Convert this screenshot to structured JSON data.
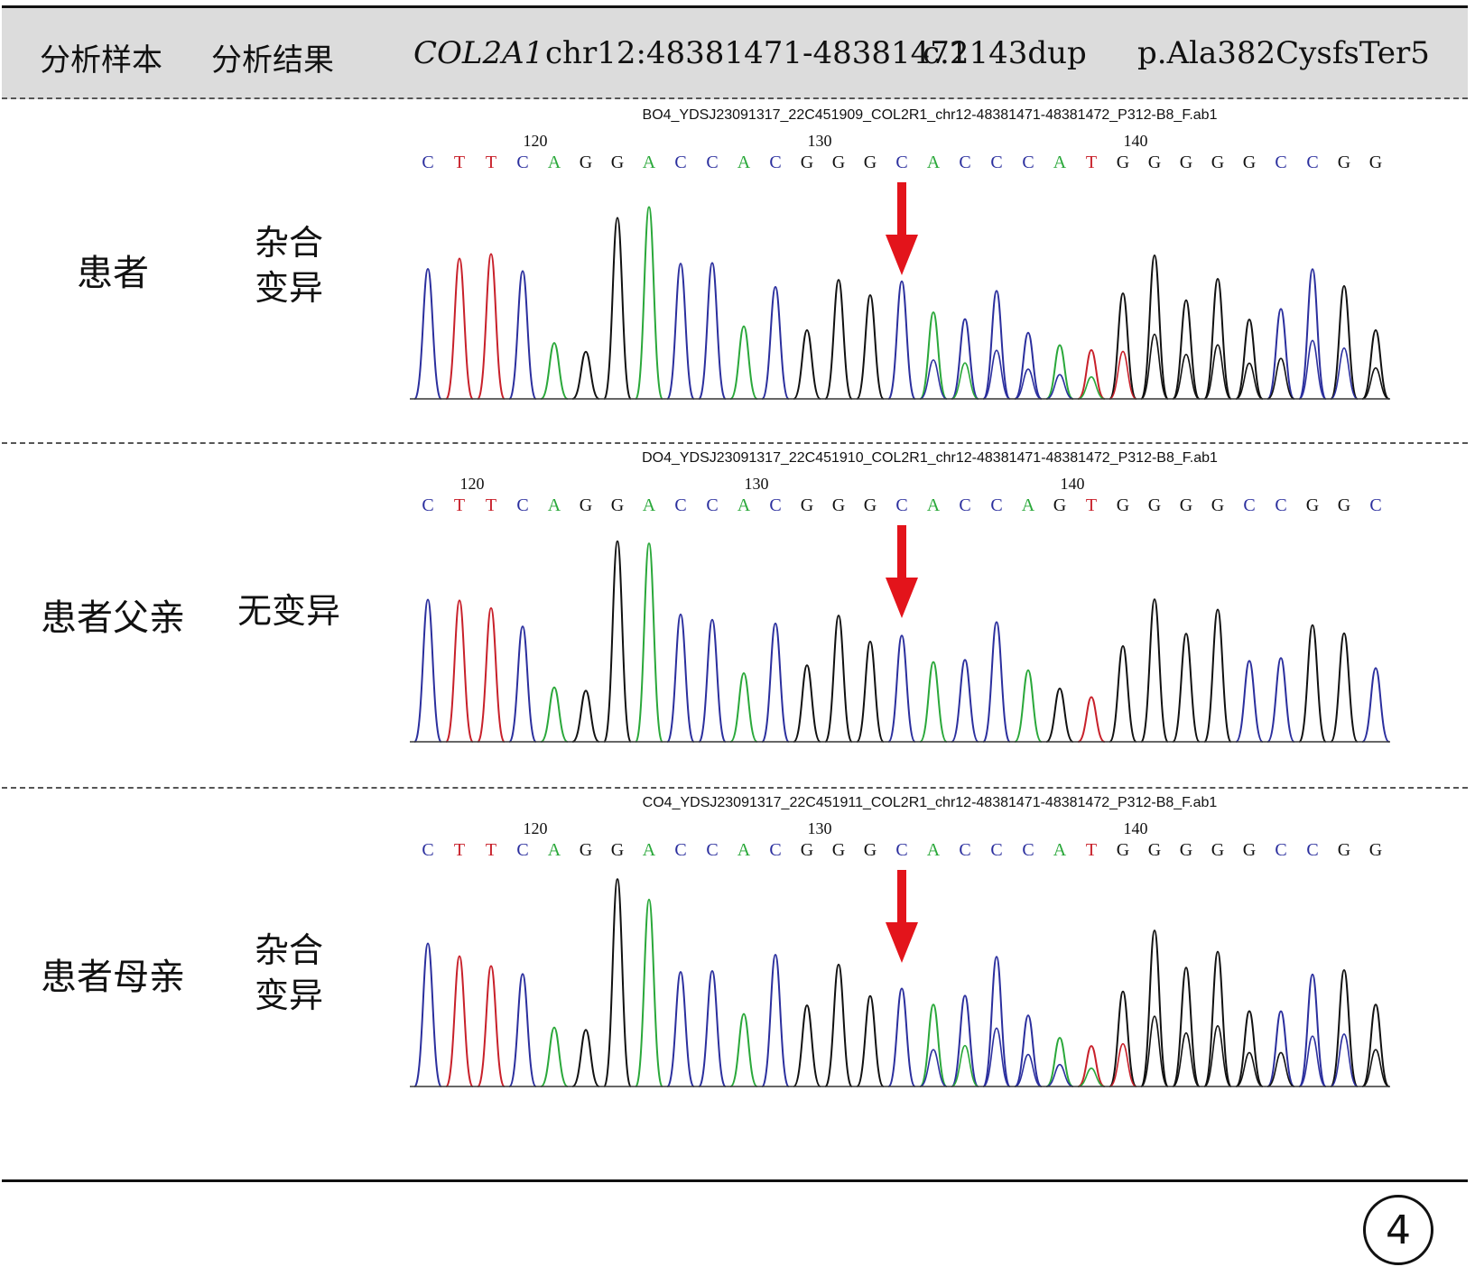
{
  "header": {
    "col_sample": "分析样本",
    "col_result": "分析结果",
    "gene": "COL2A1",
    "locus": "chr12:48381471-48381472",
    "cdna": "c.1143dup",
    "protein": "p.Ala382CysfsTer5"
  },
  "colors": {
    "A": "#2aa83a",
    "C": "#2b2f9e",
    "G": "#111111",
    "T": "#c8202a",
    "arrow": "#e3141b",
    "header_bg": "#dcdcdc"
  },
  "rows": [
    {
      "sample": "患者",
      "result": [
        "杂合",
        "变异"
      ],
      "file": "BO4_YDSJ23091317_22C451909_COL2R1_chr12-48381471-48381472_P312-B8_F.ab1",
      "bases": "CTTCAGGACCACGGGCACCCATGGGGGCCGG",
      "ticks": [
        {
          "label": "120",
          "index": 3
        },
        {
          "label": "130",
          "index": 12
        },
        {
          "label": "140",
          "index": 22
        }
      ],
      "heterozygous": true
    },
    {
      "sample": "患者父亲",
      "result": [
        "无变异"
      ],
      "file": "DO4_YDSJ23091317_22C451910_COL2R1_chr12-48381471-48381472_P312-B8_F.ab1",
      "bases": "CTTCAGGACCACGGGCACCAGTGGGGCCGGC",
      "ticks": [
        {
          "label": "120",
          "index": 1
        },
        {
          "label": "130",
          "index": 10
        },
        {
          "label": "140",
          "index": 20
        }
      ],
      "heterozygous": false
    },
    {
      "sample": "患者母亲",
      "result": [
        "杂合",
        "变异"
      ],
      "file": "CO4_YDSJ23091317_22C451911_COL2R1_chr12-48381471-48381472_P312-B8_F.ab1",
      "bases": "CTTCAGGACCACGGGCACCCATGGGGGCCGG",
      "ticks": [
        {
          "label": "120",
          "index": 3
        },
        {
          "label": "130",
          "index": 12
        },
        {
          "label": "140",
          "index": 22
        }
      ],
      "heterozygous": true
    }
  ],
  "panel_number": "4"
}
